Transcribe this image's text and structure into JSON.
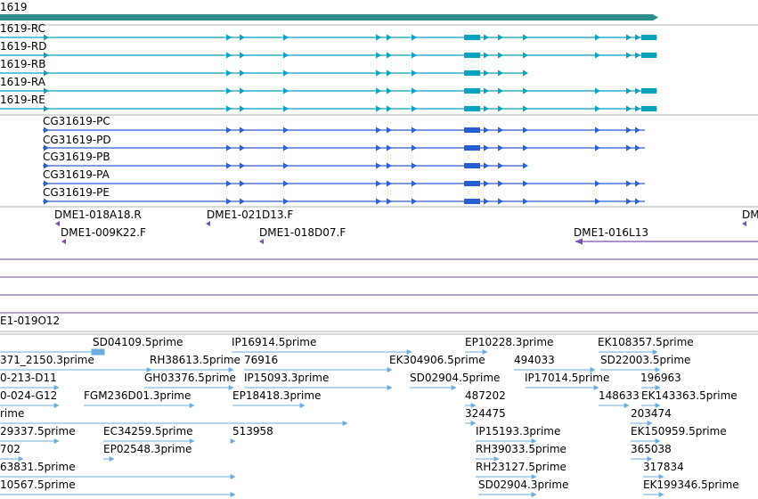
{
  "colors": {
    "gene": "#2e8b8b",
    "transcript": "#0aa0c0",
    "protein": "#2a5fd0",
    "clone": "#7a4fb0",
    "cdna": "#6aaee0",
    "separator": "#999999",
    "empty_track": "#6a4c8a"
  },
  "gene": {
    "label": "1619"
  },
  "transcripts": [
    {
      "label": "1619-RC",
      "variant": "full"
    },
    {
      "label": "1619-RD",
      "variant": "full"
    },
    {
      "label": "1619-RB",
      "variant": "short"
    },
    {
      "label": "1619-RA",
      "variant": "full"
    },
    {
      "label": "1619-RE",
      "variant": "full"
    }
  ],
  "proteins": [
    {
      "label": "CG31619-PC",
      "variant": "full"
    },
    {
      "label": "CG31619-PD",
      "variant": "full"
    },
    {
      "label": "CG31619-PB",
      "variant": "short"
    },
    {
      "label": "CG31619-PA",
      "variant": "full"
    },
    {
      "label": "CG31619-PE",
      "variant": "full"
    }
  ],
  "clones": [
    {
      "label": "DME1-018A18.R"
    },
    {
      "label": "DME1-021D13.F"
    },
    {
      "label": "DM"
    },
    {
      "label": "DME1-009K22.F"
    },
    {
      "label": "DME1-018D07.F"
    },
    {
      "label": "DME1-016L13"
    }
  ],
  "bac_label": "E1-019O12",
  "cdna_labels": [
    "SD04109.5prime",
    "IP16914.5prime",
    "EP10228.3prime",
    "EK108357.5prime",
    "371_2150.3prime",
    "RH38613.5prime",
    "76916",
    "EK304906.5prime",
    "494033",
    "SD22003.5prime",
    "0-213-D11",
    "GH03376.5prime",
    "IP15093.3prime",
    "SD02904.5prime",
    "IP17014.5prime",
    "196963",
    "0-024-G12",
    "FGM236D01.3prime",
    "EP18418.3prime",
    "487202",
    "148633",
    "EK143363.5prime",
    "rime",
    "324475",
    "203474",
    "29337.5prime",
    "EC34259.5prime",
    "513958",
    "IP15193.3prime",
    "EK150959.5prime",
    "702",
    "EP02548.3prime",
    "RH39033.5prime",
    "365038",
    "63831.5prime",
    "RH23127.5prime",
    "317834",
    "10567.5prime",
    "SD02904.3prime",
    "EK199346.5prime"
  ]
}
